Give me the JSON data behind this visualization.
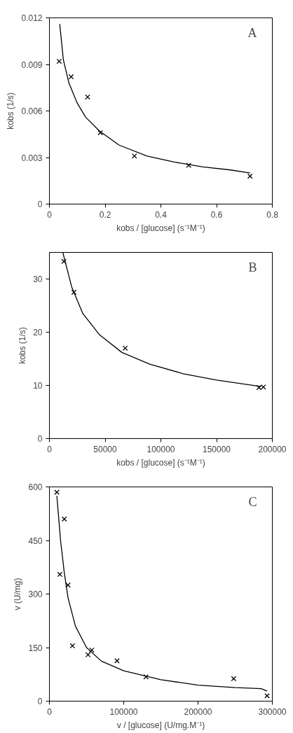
{
  "chart_data": [
    {
      "type": "scatter",
      "xlabel": "kobs / [glucose] (s⁻¹M⁻¹)",
      "ylabel": "kobs (1/s)",
      "annotations": [
        "A"
      ],
      "xlim": [
        0,
        0.8
      ],
      "xticks": [
        0,
        0.2,
        0.4,
        0.6,
        0.8
      ],
      "ylim": [
        0,
        0.012
      ],
      "yticks": [
        0,
        0.003,
        0.006,
        0.009,
        0.012
      ],
      "grid": false,
      "series": [
        {
          "marker": "cross",
          "color": "#000000",
          "x": [
            0.035,
            0.078,
            0.137,
            0.183,
            0.305,
            0.5,
            0.72
          ],
          "values": [
            0.0092,
            0.0082,
            0.0069,
            0.0046,
            0.0031,
            0.0025,
            0.0018
          ]
        },
        {
          "type": "line",
          "color": "#000000",
          "x": [
            0.037,
            0.05,
            0.07,
            0.1,
            0.13,
            0.18,
            0.25,
            0.35,
            0.45,
            0.55,
            0.65,
            0.72
          ],
          "values": [
            0.0116,
            0.0093,
            0.0078,
            0.0065,
            0.0056,
            0.0047,
            0.0038,
            0.0031,
            0.0027,
            0.0024,
            0.0022,
            0.002
          ]
        }
      ]
    },
    {
      "type": "scatter",
      "xlabel": "kobs / [glucose] (s⁻¹M⁻¹)",
      "ylabel": "kobs (1/s)",
      "annotations": [
        "B"
      ],
      "xlim": [
        0,
        200000
      ],
      "xticks": [
        0,
        50000,
        100000,
        150000,
        200000
      ],
      "ylim": [
        0,
        35
      ],
      "yticks": [
        0,
        10,
        20,
        30
      ],
      "grid": false,
      "series": [
        {
          "marker": "cross",
          "color": "#000000",
          "x": [
            13000,
            22000,
            68000,
            188000,
            192000
          ],
          "values": [
            33.3,
            27.5,
            17,
            9.6,
            9.7
          ]
        },
        {
          "type": "line",
          "color": "#000000",
          "x": [
            12000,
            20000,
            30000,
            45000,
            65000,
            90000,
            120000,
            150000,
            190000
          ],
          "values": [
            35,
            28.5,
            23.5,
            19.5,
            16.2,
            14,
            12.2,
            11,
            9.8
          ]
        }
      ]
    },
    {
      "type": "scatter",
      "xlabel": "v / [glucose] (U/mg.M⁻¹)",
      "ylabel": "v (U/mg)",
      "annotations": [
        "C"
      ],
      "xlim": [
        0,
        300000
      ],
      "xticks": [
        0,
        100000,
        200000,
        300000
      ],
      "ylim": [
        0,
        600
      ],
      "yticks": [
        0,
        150,
        300,
        450,
        600
      ],
      "grid": false,
      "series": [
        {
          "marker": "cross",
          "color": "#000000",
          "x": [
            10000,
            20000,
            14000,
            25000,
            31000,
            52000,
            57000,
            91000,
            130000,
            248000,
            293000
          ],
          "values": [
            585,
            510,
            355,
            325,
            155,
            130,
            143,
            113,
            68,
            63,
            15
          ]
        },
        {
          "type": "line",
          "color": "#000000",
          "x": [
            10000,
            15000,
            20000,
            25000,
            35000,
            50000,
            70000,
            100000,
            150000,
            200000,
            250000,
            285000,
            293000
          ],
          "values": [
            575,
            450,
            360,
            290,
            210,
            150,
            112,
            85,
            60,
            45,
            38,
            35,
            28
          ]
        }
      ]
    }
  ]
}
